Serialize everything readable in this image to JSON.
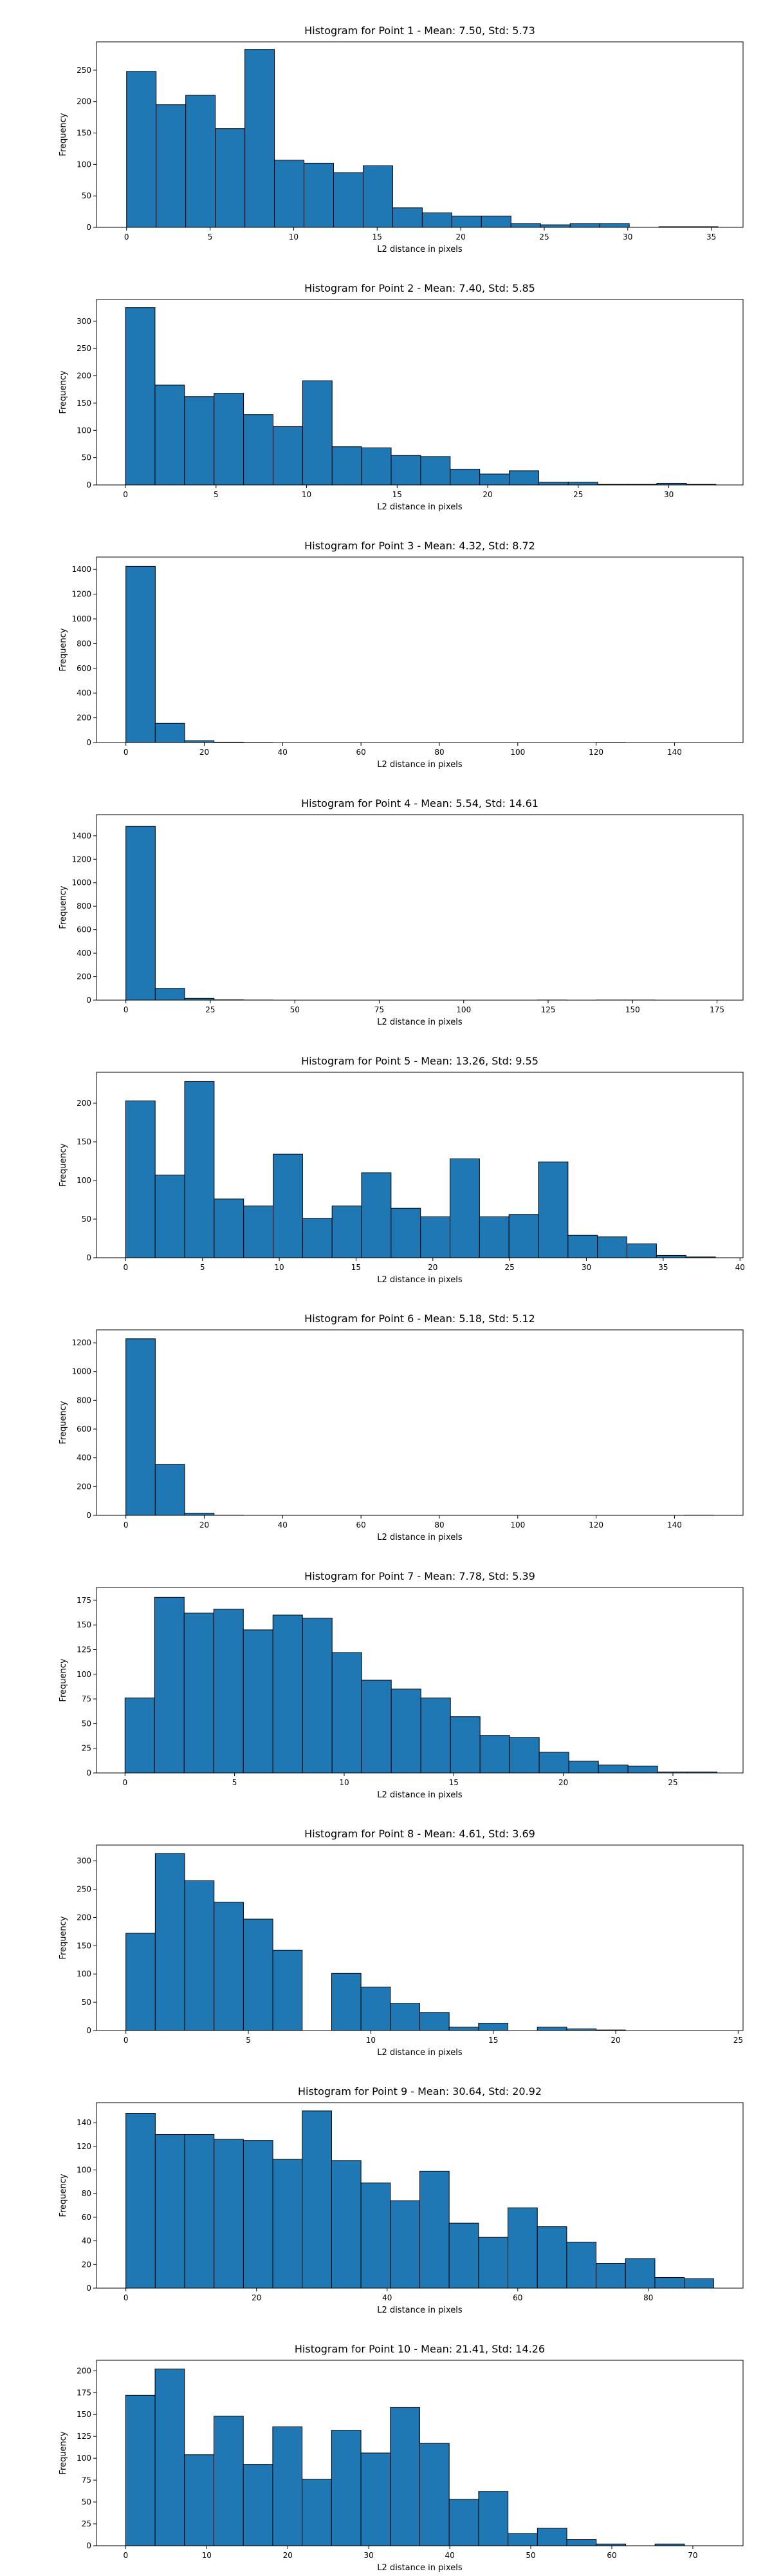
{
  "chart_data": [
    {
      "type": "bar",
      "title": "Histogram for Point 1 - Mean: 7.50, Std: 5.73",
      "xlabel": "L2 distance in pixels",
      "ylabel": "Frequency",
      "xlim": [
        -1.8,
        36.9
      ],
      "ylim": [
        0,
        295
      ],
      "xticks": [
        0,
        5,
        10,
        15,
        20,
        25,
        30,
        35
      ],
      "yticks": [
        0,
        50,
        100,
        150,
        200,
        250
      ],
      "bin_edges": [
        0,
        1.77,
        3.54,
        5.31,
        7.08,
        8.85,
        10.62,
        12.39,
        14.16,
        15.93,
        17.7,
        19.47,
        21.24,
        23.01,
        24.78,
        26.55,
        28.32,
        30.09,
        31.86,
        33.63,
        35.4
      ],
      "values": [
        248,
        195,
        210,
        157,
        283,
        107,
        102,
        87,
        98,
        31,
        23,
        18,
        18,
        6,
        4,
        6,
        6,
        0,
        1,
        1
      ],
      "grid": false
    },
    {
      "type": "bar",
      "title": "Histogram for Point 2 - Mean: 7.40, Std: 5.85",
      "xlabel": "L2 distance in pixels",
      "ylabel": "Frequency",
      "xlim": [
        -1.6,
        34.1
      ],
      "ylim": [
        0,
        340
      ],
      "xticks": [
        0,
        5,
        10,
        15,
        20,
        25,
        30
      ],
      "yticks": [
        0,
        50,
        100,
        150,
        200,
        250,
        300
      ],
      "bin_edges": [
        0,
        1.63,
        3.26,
        4.89,
        6.52,
        8.15,
        9.78,
        11.41,
        13.04,
        14.67,
        16.3,
        17.93,
        19.56,
        21.19,
        22.82,
        24.45,
        26.08,
        27.71,
        29.34,
        30.97,
        32.6
      ],
      "values": [
        325,
        183,
        162,
        168,
        129,
        107,
        191,
        70,
        68,
        54,
        52,
        29,
        20,
        26,
        5,
        5,
        1,
        1,
        3,
        1
      ],
      "grid": false
    },
    {
      "type": "bar",
      "title": "Histogram for Point 3 - Mean: 4.32, Std: 8.72",
      "xlabel": "L2 distance in pixels",
      "ylabel": "Frequency",
      "xlim": [
        -7.5,
        157.5
      ],
      "ylim": [
        0,
        1500
      ],
      "xticks": [
        0,
        20,
        40,
        60,
        80,
        100,
        120,
        140
      ],
      "yticks": [
        0,
        200,
        400,
        600,
        800,
        1000,
        1200,
        1400
      ],
      "bin_edges": [
        0,
        7.5,
        15,
        22.5,
        30,
        37.5,
        45,
        52.5,
        60,
        67.5,
        75,
        82.5,
        90,
        97.5,
        105,
        112.5,
        120,
        127.5,
        135,
        142.5,
        150
      ],
      "values": [
        1425,
        155,
        15,
        3,
        1,
        0,
        0,
        0,
        0,
        0,
        0,
        0,
        0,
        0,
        0,
        0,
        1,
        0,
        0,
        0
      ],
      "grid": false
    },
    {
      "type": "bar",
      "title": "Histogram for Point 4 - Mean: 5.54, Std: 14.61",
      "xlabel": "L2 distance in pixels",
      "ylabel": "Frequency",
      "xlim": [
        -8.7,
        182.7
      ],
      "ylim": [
        0,
        1580
      ],
      "xticks": [
        0,
        25,
        50,
        75,
        100,
        125,
        150,
        175
      ],
      "yticks": [
        0,
        200,
        400,
        600,
        800,
        1000,
        1200,
        1400
      ],
      "bin_edges": [
        0,
        8.7,
        17.4,
        26.1,
        34.8,
        43.5,
        52.2,
        60.9,
        69.6,
        78.3,
        87,
        95.7,
        104.4,
        113.1,
        121.8,
        130.5,
        139.2,
        147.9,
        156.6,
        165.3,
        174
      ],
      "values": [
        1480,
        100,
        15,
        3,
        1,
        0,
        0,
        0,
        0,
        0,
        0,
        0,
        0,
        0,
        1,
        0,
        1,
        1,
        0,
        0
      ],
      "grid": false
    },
    {
      "type": "bar",
      "title": "Histogram for Point 5 - Mean: 13.26, Std: 9.55",
      "xlabel": "L2 distance in pixels",
      "ylabel": "Frequency",
      "xlim": [
        -1.9,
        40.2
      ],
      "ylim": [
        0,
        240
      ],
      "xticks": [
        0,
        5,
        10,
        15,
        20,
        25,
        30,
        35,
        40
      ],
      "yticks": [
        0,
        50,
        100,
        150,
        200
      ],
      "bin_edges": [
        0,
        1.92,
        3.84,
        5.76,
        7.68,
        9.6,
        11.52,
        13.44,
        15.36,
        17.28,
        19.2,
        21.12,
        23.04,
        24.96,
        26.88,
        28.8,
        30.72,
        32.64,
        34.56,
        36.48,
        38.4
      ],
      "values": [
        203,
        107,
        228,
        76,
        67,
        134,
        51,
        67,
        110,
        64,
        53,
        128,
        53,
        56,
        124,
        29,
        27,
        18,
        3,
        1
      ],
      "grid": false
    },
    {
      "type": "bar",
      "title": "Histogram for Point 6 - Mean: 5.18, Std: 5.12",
      "xlabel": "L2 distance in pixels",
      "ylabel": "Frequency",
      "xlim": [
        -7.5,
        157.5
      ],
      "ylim": [
        0,
        1290
      ],
      "xticks": [
        0,
        20,
        40,
        60,
        80,
        100,
        120,
        140
      ],
      "yticks": [
        0,
        200,
        400,
        600,
        800,
        1000,
        1200
      ],
      "bin_edges": [
        0,
        7.5,
        15,
        22.5,
        30,
        37.5,
        45,
        52.5,
        60,
        67.5,
        75,
        82.5,
        90,
        97.5,
        105,
        112.5,
        120,
        127.5,
        135,
        142.5,
        150
      ],
      "values": [
        1228,
        355,
        15,
        1,
        0,
        0,
        0,
        0,
        0,
        0,
        0,
        0,
        0,
        0,
        0,
        0,
        0,
        0,
        0,
        1
      ],
      "grid": false
    },
    {
      "type": "bar",
      "title": "Histogram for Point 7 - Mean: 7.78, Std: 5.39",
      "xlabel": "L2 distance in pixels",
      "ylabel": "Frequency",
      "xlim": [
        -1.3,
        28.2
      ],
      "ylim": [
        0,
        188
      ],
      "xticks": [
        0,
        5,
        10,
        15,
        20,
        25
      ],
      "yticks": [
        0,
        25,
        50,
        75,
        100,
        125,
        150,
        175
      ],
      "bin_edges": [
        0,
        1.35,
        2.7,
        4.05,
        5.4,
        6.75,
        8.1,
        9.45,
        10.8,
        12.15,
        13.5,
        14.85,
        16.2,
        17.55,
        18.9,
        20.25,
        21.6,
        22.95,
        24.3,
        25.65,
        27
      ],
      "values": [
        76,
        178,
        162,
        166,
        145,
        160,
        157,
        122,
        94,
        85,
        76,
        57,
        38,
        36,
        21,
        12,
        8,
        7,
        1,
        1
      ],
      "grid": false
    },
    {
      "type": "bar",
      "title": "Histogram for Point 8 - Mean: 4.61, Std: 3.69",
      "xlabel": "L2 distance in pixels",
      "ylabel": "Frequency",
      "xlim": [
        -1.2,
        25.2
      ],
      "ylim": [
        0,
        328
      ],
      "xticks": [
        0,
        5,
        10,
        15,
        20,
        25
      ],
      "yticks": [
        0,
        50,
        100,
        150,
        200,
        250,
        300
      ],
      "bin_edges": [
        0,
        1.2,
        2.4,
        3.6,
        4.8,
        6,
        7.2,
        8.4,
        9.6,
        10.8,
        12,
        13.2,
        14.4,
        15.6,
        16.8,
        18,
        19.2,
        20.4,
        21.6,
        22.8,
        24
      ],
      "values": [
        172,
        313,
        265,
        227,
        197,
        142,
        0,
        101,
        77,
        48,
        32,
        6,
        13,
        0,
        6,
        3,
        1,
        0,
        0,
        0
      ],
      "grid": false
    },
    {
      "type": "bar",
      "title": "Histogram for Point 9 - Mean: 30.64, Std: 20.92",
      "xlabel": "L2 distance in pixels",
      "ylabel": "Frequency",
      "xlim": [
        -4.5,
        94.5
      ],
      "ylim": [
        0,
        157
      ],
      "xticks": [
        0,
        20,
        40,
        60,
        80
      ],
      "yticks": [
        0,
        20,
        40,
        60,
        80,
        100,
        120,
        140
      ],
      "bin_edges": [
        0,
        4.5,
        9,
        13.5,
        18,
        22.5,
        27,
        31.5,
        36,
        40.5,
        45,
        49.5,
        54,
        58.5,
        63,
        67.5,
        72,
        76.5,
        81,
        85.5,
        90
      ],
      "values": [
        148,
        130,
        130,
        126,
        125,
        109,
        150,
        108,
        89,
        74,
        99,
        55,
        43,
        68,
        52,
        39,
        21,
        25,
        9,
        8
      ],
      "grid": false
    },
    {
      "type": "bar",
      "title": "Histogram for Point 10 - Mean: 21.41, Std: 14.26",
      "xlabel": "L2 distance in pixels",
      "ylabel": "Frequency",
      "xlim": [
        -3.6,
        76.2
      ],
      "ylim": [
        0,
        212
      ],
      "xticks": [
        0,
        10,
        20,
        30,
        40,
        50,
        60,
        70
      ],
      "yticks": [
        0,
        25,
        50,
        75,
        100,
        125,
        150,
        175,
        200
      ],
      "bin_edges": [
        0,
        3.63,
        7.26,
        10.89,
        14.52,
        18.15,
        21.78,
        25.41,
        29.04,
        32.67,
        36.3,
        39.93,
        43.56,
        47.19,
        50.82,
        54.45,
        58.08,
        61.71,
        65.34,
        68.97,
        72.6
      ],
      "values": [
        172,
        202,
        104,
        148,
        93,
        136,
        76,
        132,
        106,
        158,
        117,
        53,
        62,
        14,
        20,
        7,
        2,
        0,
        2,
        0
      ],
      "grid": false
    }
  ],
  "colors": {
    "bar_fill": "#1f77b4",
    "bar_edge": "#000000",
    "axis": "#000000"
  }
}
